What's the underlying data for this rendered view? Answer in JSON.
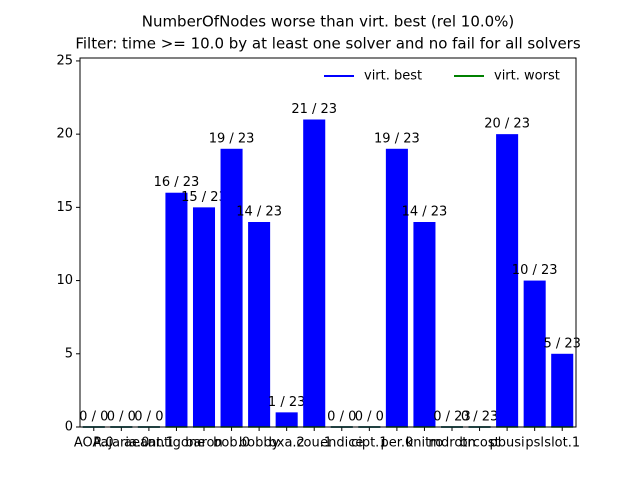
{
  "chart_data": {
    "type": "bar",
    "title": "NumberOfNodes worse than virt. best (rel 10.0%)",
    "subtitle": "Filter: time >= 10.0 by at least one solver and no fail for all solvers",
    "categories": [
      "AOA.0",
      "Pajaria.0",
      "aeant.1",
      "antigone",
      "baron",
      "bob.0",
      "bobby",
      "bxa.2",
      "cou.1",
      "endice",
      "cipt.1",
      "per.0",
      "knitro",
      "mdrotn",
      "brcost",
      "pbusi",
      "psl",
      "slot.1"
    ],
    "series": [
      {
        "name": "virt. best",
        "color": "#0000ff",
        "values": [
          0,
          0,
          0,
          16,
          15,
          19,
          14,
          1,
          21,
          0,
          0,
          19,
          14,
          0,
          0,
          20,
          10,
          5
        ],
        "value_labels": [
          "0 / 0",
          "0 / 0",
          "0 / 0",
          "16 / 23",
          "15 / 23",
          "19 / 23",
          "14 / 23",
          "1 / 23",
          "21 / 23",
          "0 / 0",
          "0 / 0",
          "19 / 23",
          "14 / 23",
          "0 / 23",
          "0 / 23",
          "20 / 23",
          "10 / 23",
          "5 / 23"
        ]
      },
      {
        "name": "virt. worst",
        "color": "#008000",
        "values": [
          0,
          0,
          0,
          0,
          0,
          0,
          0,
          0,
          0,
          0,
          0,
          0,
          0,
          0,
          0,
          0,
          0,
          0
        ]
      }
    ],
    "ylim": [
      0,
      25.2
    ],
    "yticks": [
      0,
      5,
      10,
      15,
      20,
      25
    ],
    "legend": "upper right"
  }
}
